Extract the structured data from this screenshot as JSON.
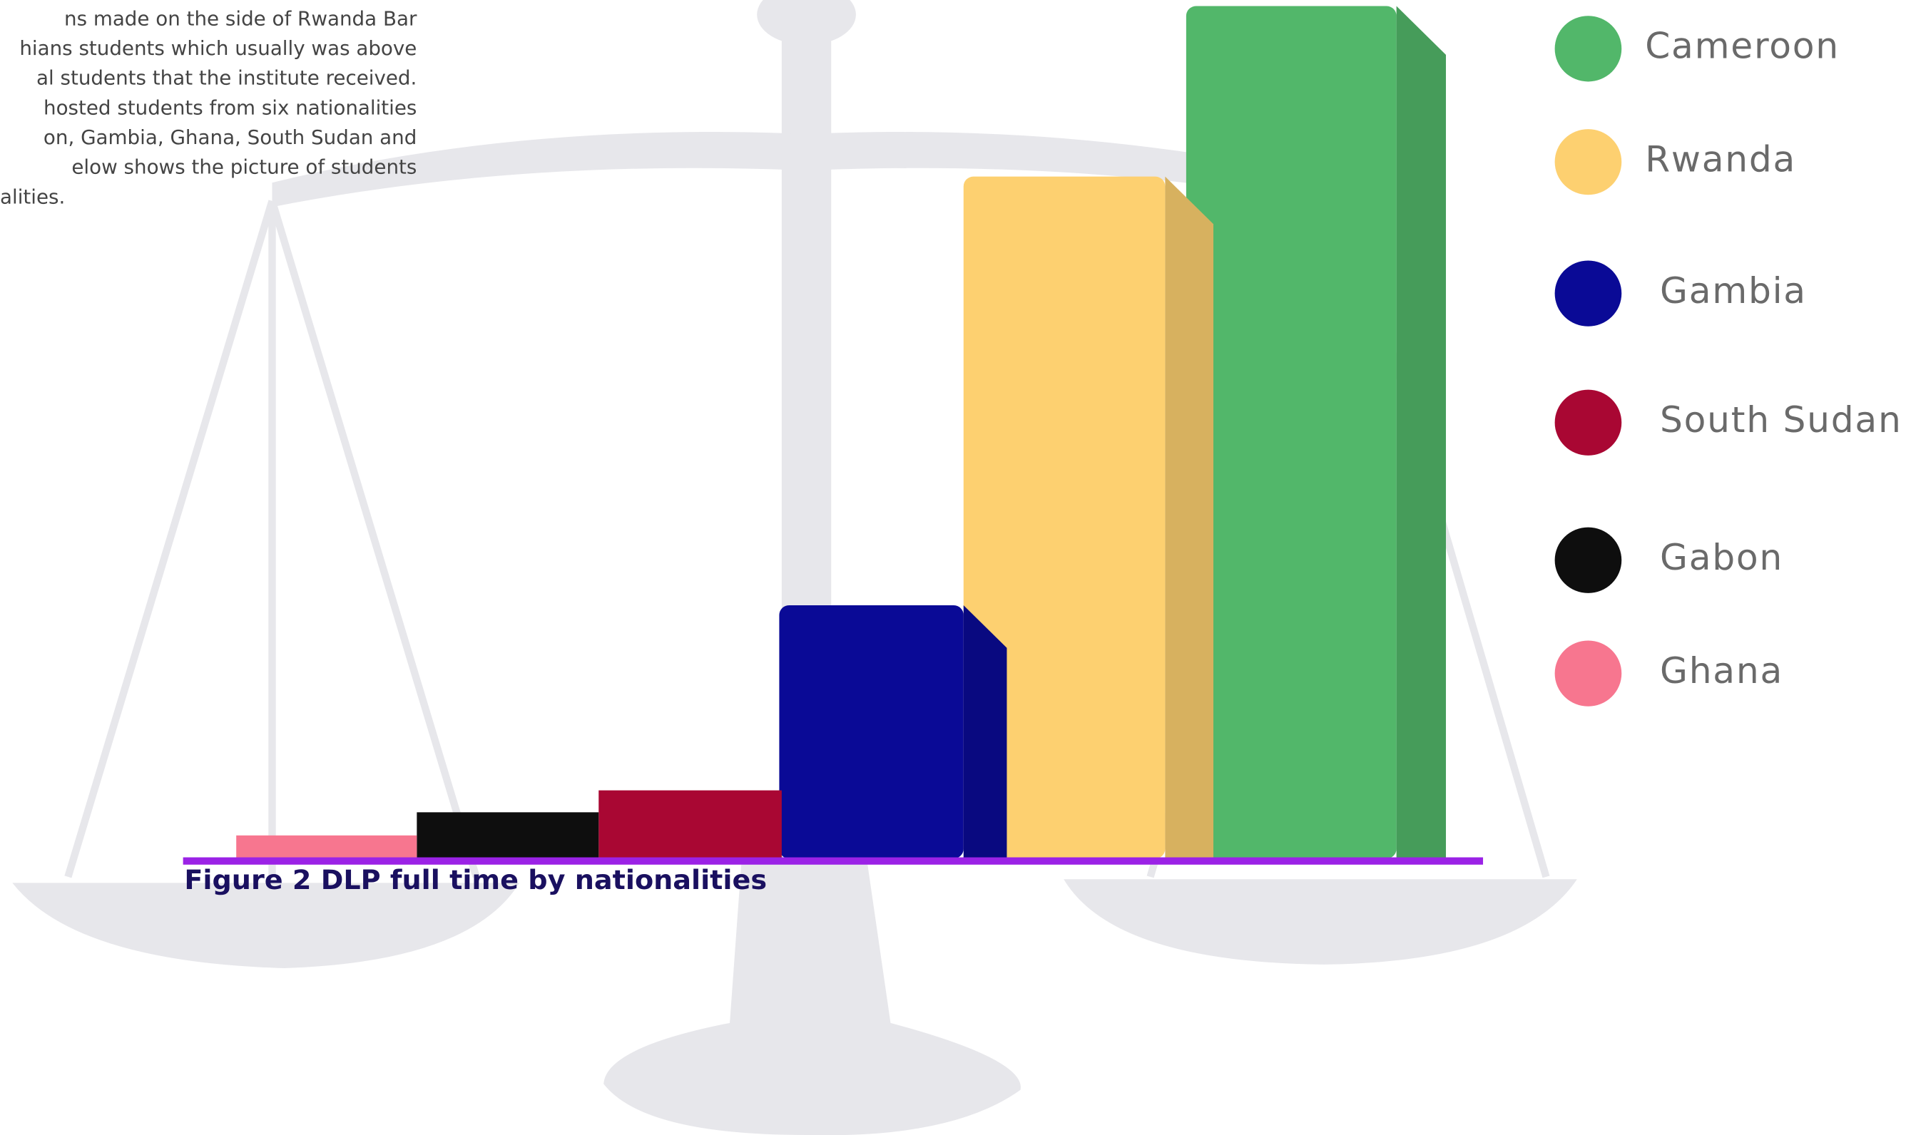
{
  "document": {
    "lines": [
      "ns made on the side of Rwanda Bar",
      "hians students which usually was above",
      "al students that the institute received.",
      "hosted students from six nationalities",
      "on, Gambia, Ghana, South Sudan and",
      "elow shows the picture of students",
      "alities."
    ]
  },
  "chart_data": {
    "type": "bar3d",
    "title": "Figure 2 DLP full time by nationalities",
    "categories": [
      "Ghana",
      "Gabon",
      "South Sudan",
      "Gambia",
      "Rwanda",
      "Cameroon"
    ],
    "values": [
      19,
      38,
      56,
      208,
      560,
      700
    ],
    "colors": [
      "#f7768f",
      "#0e0e0e",
      "#a90733",
      "#0a0a96",
      "#fdd070",
      "#52b76a"
    ],
    "ylim": [
      0,
      700
    ],
    "legend": "right"
  }
}
